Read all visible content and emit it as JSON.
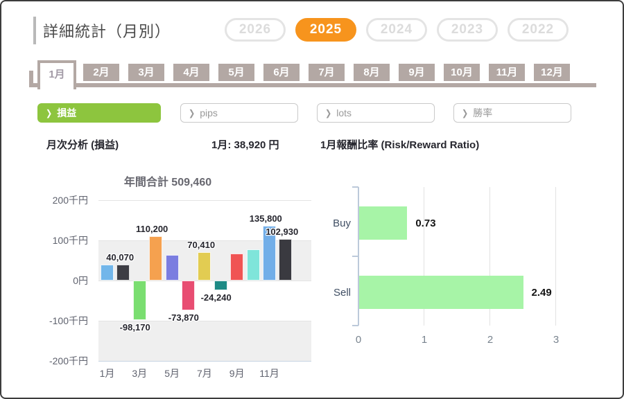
{
  "window": {
    "title": "詳細統計（月別）"
  },
  "year_switcher": {
    "years": [
      {
        "label": "2026",
        "active": false
      },
      {
        "label": "2025",
        "active": true
      },
      {
        "label": "2024",
        "active": false
      },
      {
        "label": "2023",
        "active": false
      },
      {
        "label": "2022",
        "active": false
      }
    ]
  },
  "month_tabs": {
    "tabs": [
      "1月",
      "2月",
      "3月",
      "4月",
      "5月",
      "6月",
      "7月",
      "8月",
      "9月",
      "10月",
      "11月",
      "12月"
    ],
    "active_index": 0
  },
  "metric_buttons": [
    {
      "label": "損益",
      "active": true
    },
    {
      "label": "pips",
      "active": false
    },
    {
      "label": "lots",
      "active": false
    },
    {
      "label": "勝率",
      "active": false
    }
  ],
  "panel": {
    "left_heading": "月次分析 (損益)",
    "selected_month_value": "1月: 38,920 円",
    "right_heading": "1月報酬比率 (Risk/Reward Ratio)"
  },
  "colors": {
    "accent_orange": "#f7941d",
    "accent_green": "#8dc53e",
    "tab_taupe": "#b3a8a4",
    "rr_bar_green": "#a7f4a7"
  },
  "chart_data": [
    {
      "type": "bar",
      "title": "年間合計 509,460",
      "annual_total": 509460,
      "categories": [
        "1月",
        "2月",
        "3月",
        "4月",
        "5月",
        "6月",
        "7月",
        "8月",
        "9月",
        "10月",
        "11月",
        "12月"
      ],
      "values": [
        38920,
        40070,
        -98170,
        110200,
        63000,
        -73870,
        70410,
        -24240,
        66500,
        77910,
        135800,
        102930
      ],
      "estimated_value_indices": [
        4,
        8,
        9
      ],
      "data_labels": [
        "",
        "40,070",
        "-98,170",
        "110,200",
        "",
        "-73,870",
        "70,410",
        "-24,240",
        "",
        "",
        "135,800",
        "102,930"
      ],
      "bar_colors": [
        "#72b6ea",
        "#3d3d44",
        "#7ade70",
        "#f5a14f",
        "#7b7de0",
        "#e84d72",
        "#e2cc52",
        "#1d8a85",
        "#f05454",
        "#7fe5da",
        "#72aee8",
        "#3a3a40"
      ],
      "dot_pattern_bar_index": 4,
      "ytick_labels": [
        "200千円",
        "100千円",
        "0円",
        "-100千円",
        "-200千円"
      ],
      "ytick_values": [
        200000,
        100000,
        0,
        -100000,
        -200000
      ],
      "ylim": [
        -200000,
        200000
      ],
      "shaded_bands": [
        [
          0,
          100000
        ],
        [
          -200000,
          -100000
        ]
      ],
      "xtick_labels": [
        "1月",
        "3月",
        "5月",
        "7月",
        "9月",
        "11月"
      ],
      "xtick_bar_indices": [
        0,
        2,
        4,
        6,
        8,
        10
      ],
      "grid": true,
      "legend": "none"
    },
    {
      "type": "bar",
      "orientation": "horizontal",
      "title": "1月報酬比率 (Risk/Reward Ratio)",
      "categories": [
        "Buy",
        "Sell"
      ],
      "values": [
        0.73,
        2.49
      ],
      "data_labels": [
        "0.73",
        "2.49"
      ],
      "xlim": [
        0,
        3
      ],
      "xtick_labels": [
        "0",
        "1",
        "2",
        "3"
      ],
      "grid": true,
      "legend": "none"
    }
  ]
}
